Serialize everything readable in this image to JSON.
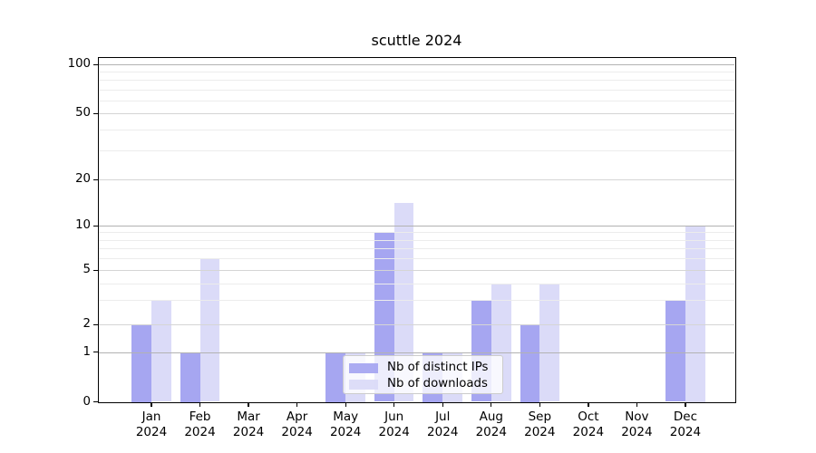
{
  "chart_data": {
    "type": "bar",
    "title": "scuttle 2024",
    "categories": [
      "Jan",
      "Feb",
      "Mar",
      "Apr",
      "May",
      "Jun",
      "Jul",
      "Aug",
      "Sep",
      "Oct",
      "Nov",
      "Dec"
    ],
    "category_year": "2024",
    "series": [
      {
        "name": "Nb of distinct IPs",
        "color": "#a6a6f1",
        "values": [
          2,
          1,
          0,
          0,
          1,
          9,
          1,
          3,
          2,
          0,
          0,
          3
        ]
      },
      {
        "name": "Nb of downloads",
        "color": "#dbdbf8",
        "values": [
          3,
          6,
          0,
          0,
          1,
          14,
          1,
          4,
          4,
          0,
          0,
          10
        ]
      }
    ],
    "yscale": "log",
    "y_ticks": [
      0,
      1,
      2,
      5,
      10,
      20,
      50,
      100
    ],
    "y_minor_gridlines": [
      3,
      4,
      6,
      7,
      8,
      9,
      30,
      40,
      60,
      70,
      80,
      90
    ],
    "ylim": [
      0,
      100
    ],
    "xlabel": "",
    "ylabel": "",
    "grid": true,
    "legend_position": "lower center"
  },
  "colors": {
    "bar_ips": "#a6a6f1",
    "bar_downloads": "#dbdbf8",
    "gridline_decade": "#b2b2b2",
    "gridline_major": "#d5d5d5",
    "gridline_minor": "#ececec",
    "spine": "#000000",
    "background": "#ffffff"
  }
}
